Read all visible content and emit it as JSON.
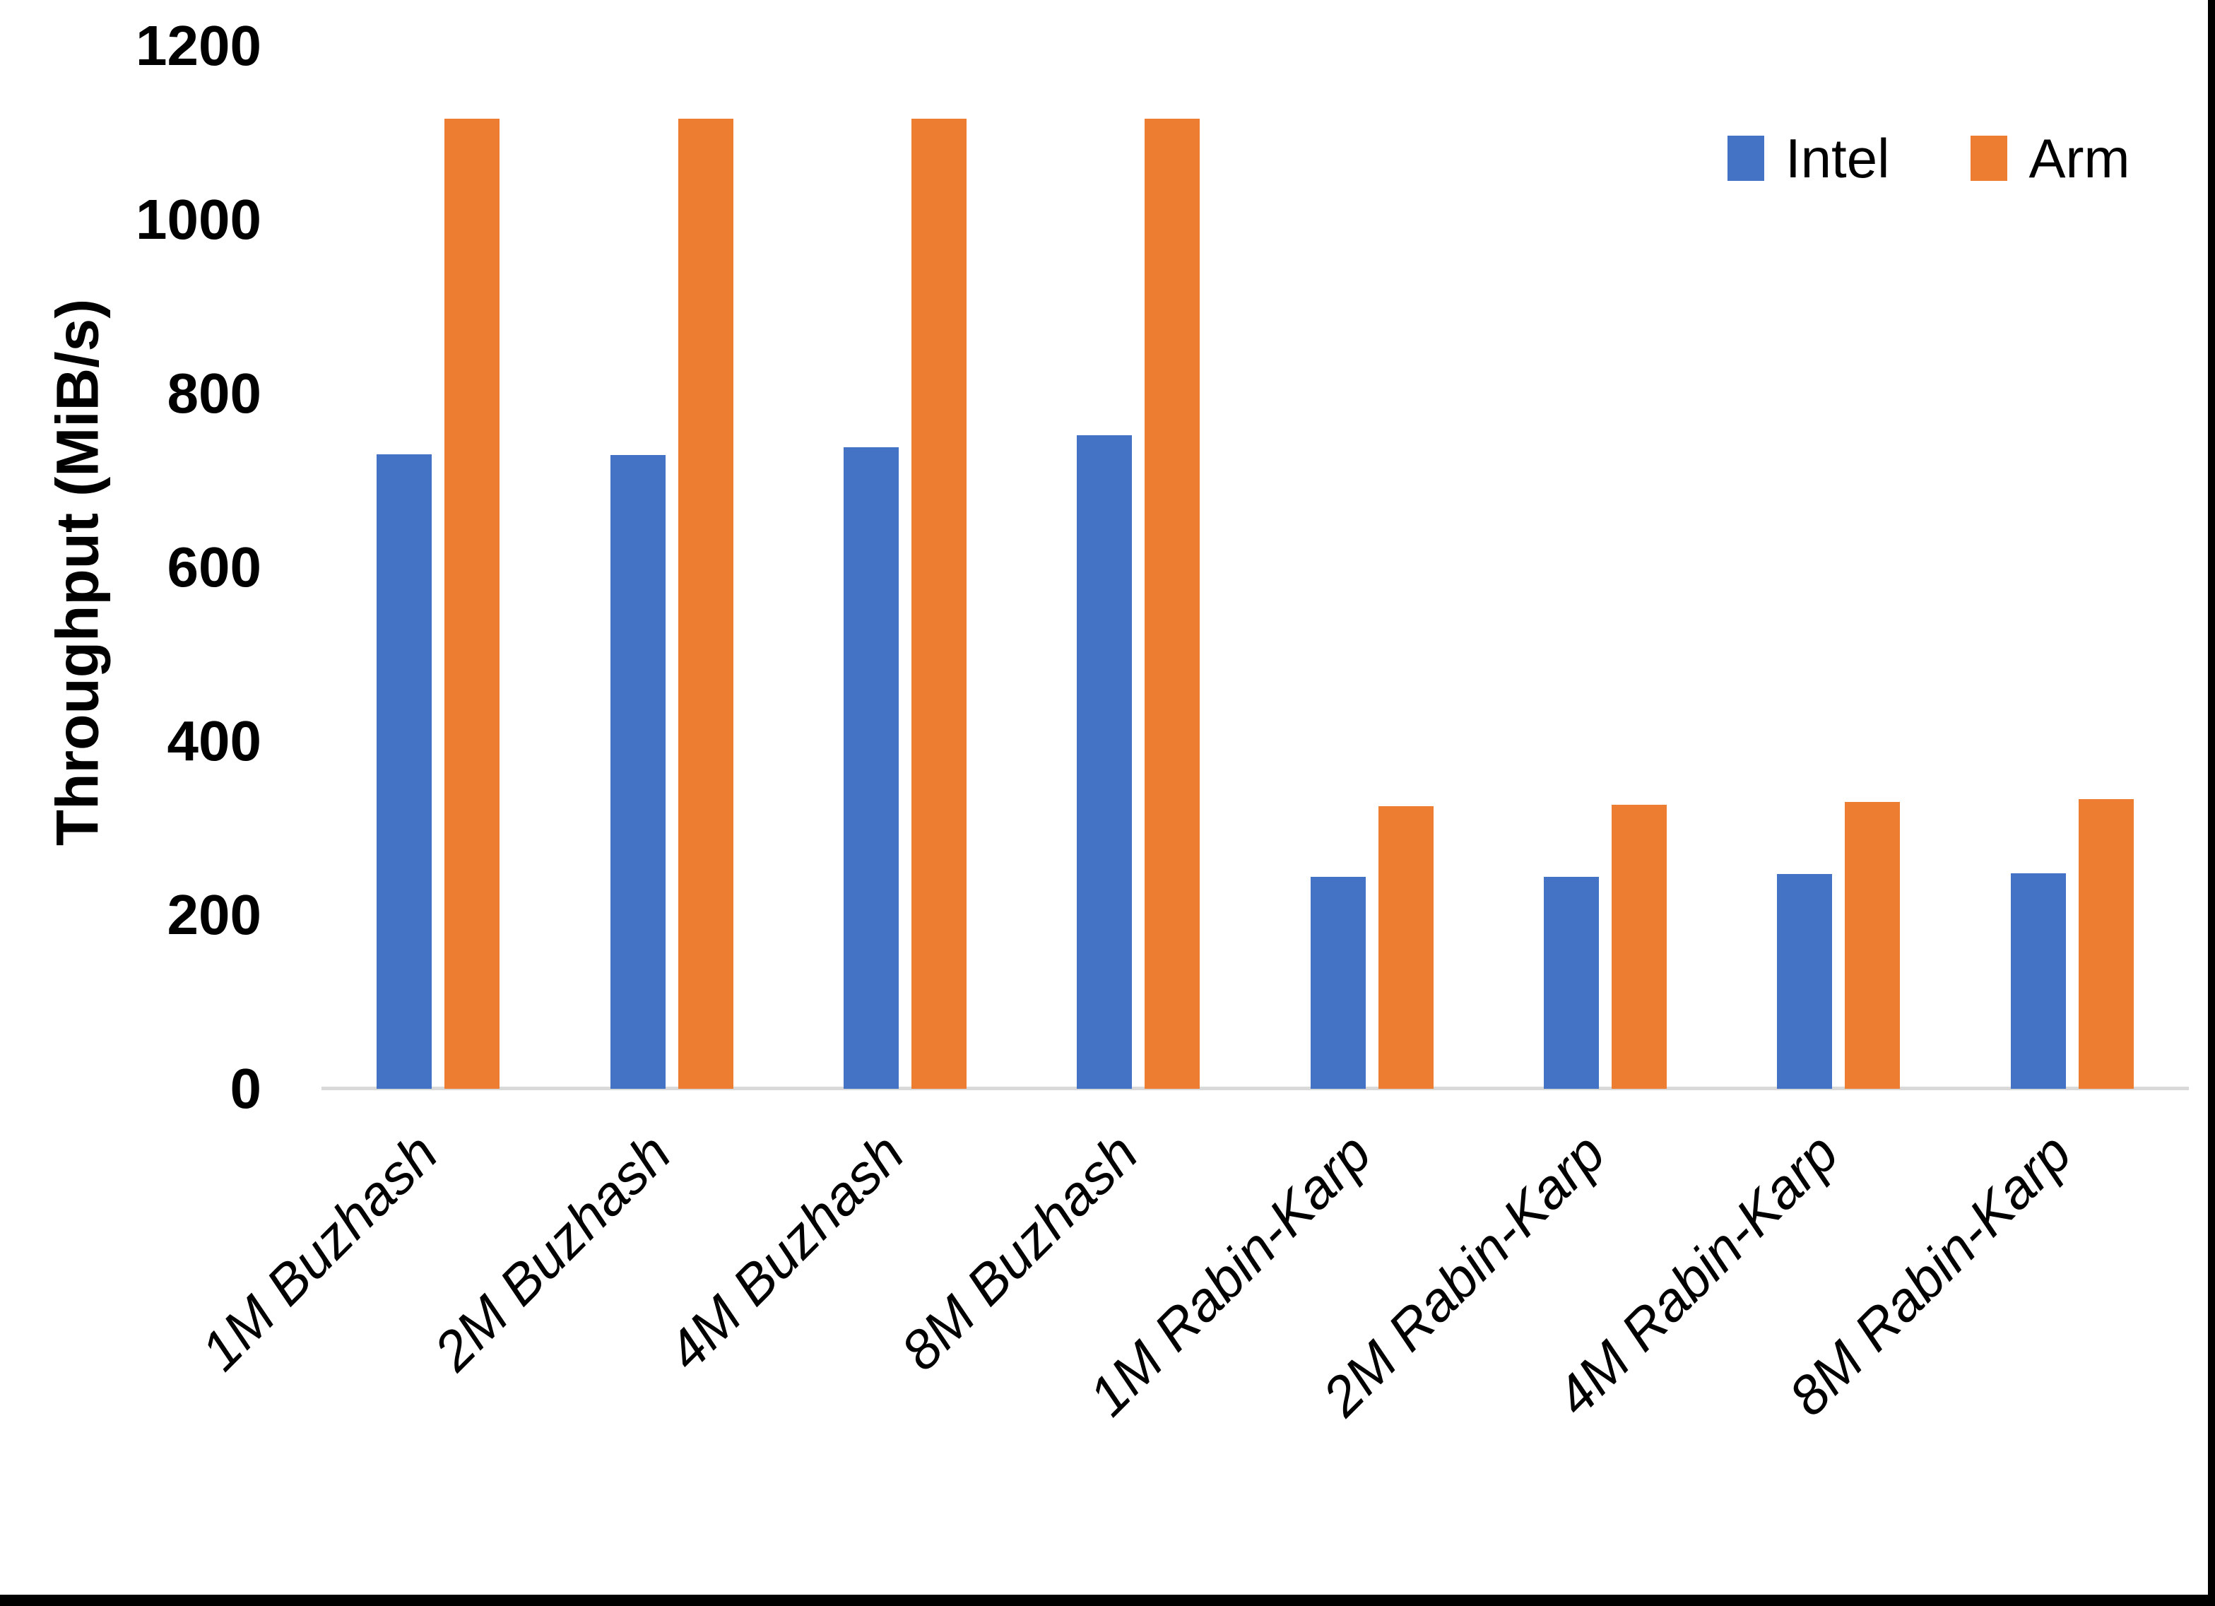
{
  "y_axis": {
    "title": "Throughput (MiB/s)",
    "ticks": [
      0,
      200,
      400,
      600,
      800,
      1000,
      1200
    ]
  },
  "legend": {
    "entries": [
      "Intel",
      "Arm"
    ]
  },
  "colors": {
    "intel": "#4472C4",
    "arm": "#ED7D31",
    "axis_line": "#D9D9D9",
    "text": "#000000",
    "background": "#FFFFFF",
    "frame_border": "#000000"
  },
  "chart_data": {
    "type": "bar",
    "title": "",
    "xlabel": "",
    "ylabel": "Throughput (MiB/s)",
    "ylim": [
      0,
      1200
    ],
    "yticks": [
      0,
      200,
      400,
      600,
      800,
      1000,
      1200
    ],
    "grid": false,
    "legend_position": "top-right",
    "categories": [
      "1M Buzhash",
      "2M Buzhash",
      "4M Buzhash",
      "8M Buzhash",
      "1M Rabin-Karp",
      "2M Rabin-Karp",
      "4M Rabin-Karp",
      "8M Rabin-Karp"
    ],
    "series": [
      {
        "name": "Intel",
        "color": "#4472C4",
        "values": [
          730,
          729,
          738,
          752,
          244,
          244,
          247,
          248
        ]
      },
      {
        "name": "Arm",
        "color": "#ED7D31",
        "values": [
          1116,
          1116,
          1116,
          1116,
          325,
          327,
          330,
          333
        ]
      }
    ]
  }
}
